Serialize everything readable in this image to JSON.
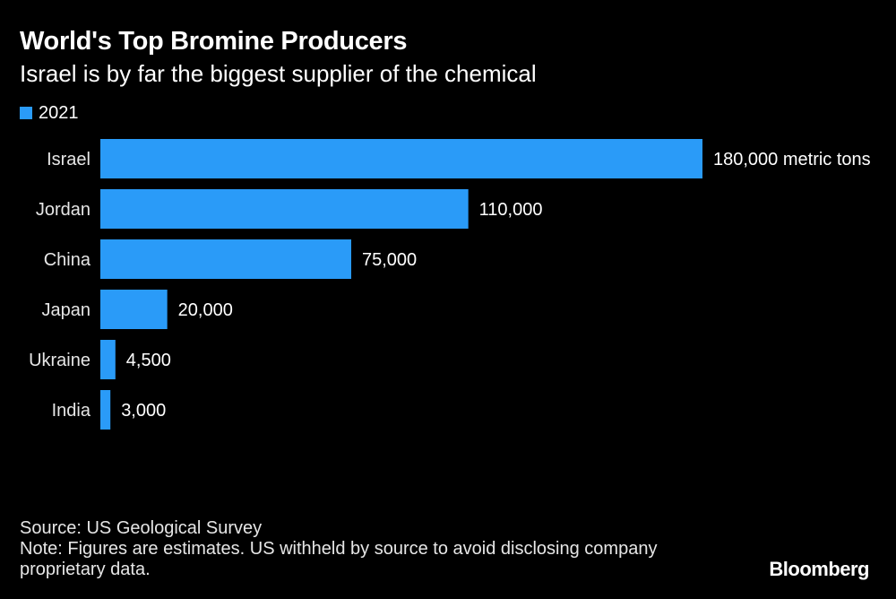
{
  "header": {
    "title": "World's Top Bromine Producers",
    "subtitle": "Israel is by far the biggest supplier of the chemical"
  },
  "legend": {
    "label": "2021"
  },
  "chart_data": {
    "type": "bar",
    "orientation": "horizontal",
    "categories": [
      "Israel",
      "Jordan",
      "China",
      "Japan",
      "Ukraine",
      "India"
    ],
    "series": [
      {
        "name": "2021",
        "values": [
          180000,
          110000,
          75000,
          20000,
          4500,
          3000
        ],
        "value_labels": [
          "180,000 metric tons",
          "110,000",
          "75,000",
          "20,000",
          "4,500",
          "3,000"
        ]
      }
    ],
    "xlim": [
      0,
      180000
    ],
    "grid": false,
    "legend_position": "top-left",
    "bar_color": "#2a9bf8"
  },
  "footer": {
    "source": "Source: US Geological Survey",
    "note_line1": "Note: Figures are estimates. US withheld by source to avoid disclosing company",
    "note_line2": "proprietary data."
  },
  "brand": {
    "name": "Bloomberg"
  },
  "colors": {
    "background": "#000000",
    "bar": "#2a9bf8",
    "text": "#ffffff"
  }
}
